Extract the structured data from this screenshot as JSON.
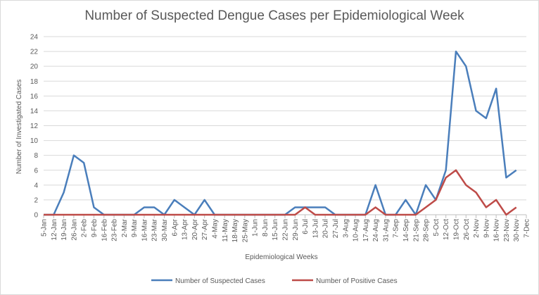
{
  "chart_data": {
    "type": "line",
    "title": "Number of Suspected Dengue Cases per Epidemiological Week",
    "x_label": "Epidemiological Weeks",
    "y_label": "Number  of Investigated Cases",
    "categories": [
      "5-Jan",
      "12-Jan",
      "19-Jan",
      "26-Jan",
      "2-Feb",
      "9-Feb",
      "16-Feb",
      "23-Feb",
      "2-Mar",
      "9-Mar",
      "16-Mar",
      "23-Mar",
      "30-Mar",
      "6-Apr",
      "13-Apr",
      "20-Apr",
      "27-Apr",
      "4-May",
      "11-May",
      "18-May",
      "25-May",
      "1-Jun",
      "8-Jun",
      "15-Jun",
      "22-Jun",
      "29-Jun",
      "6-Jul",
      "13-Jul",
      "20-Jul",
      "27-Jul",
      "3-Aug",
      "10-Aug",
      "17-Aug",
      "24-Aug",
      "31-Aug",
      "7-Sep",
      "14-Sep",
      "21-Sep",
      "28-Sep",
      "5-Oct",
      "12-Oct",
      "19-Oct",
      "26-Oct",
      "2-Nov",
      "9-Nov",
      "16-Nov",
      "23-Nov",
      "30-Nov",
      "7-Dec"
    ],
    "series": [
      {
        "name": "Number of Suspected Cases",
        "color": "#4a7ebb",
        "values": [
          0,
          0,
          3,
          8,
          7,
          1,
          0,
          0,
          0,
          0,
          1,
          1,
          0,
          2,
          1,
          0,
          2,
          0,
          0,
          0,
          0,
          0,
          0,
          0,
          0,
          1,
          1,
          1,
          1,
          0,
          0,
          0,
          0,
          4,
          0,
          0,
          2,
          0,
          4,
          2,
          6,
          22,
          20,
          14,
          13,
          17,
          5,
          6,
          null
        ]
      },
      {
        "name": "Number of Positive Cases",
        "color": "#be4b48",
        "values": [
          0,
          0,
          0,
          0,
          0,
          0,
          0,
          0,
          0,
          0,
          0,
          0,
          0,
          0,
          0,
          0,
          0,
          0,
          0,
          0,
          0,
          0,
          0,
          0,
          0,
          0,
          1,
          0,
          0,
          0,
          0,
          0,
          0,
          1,
          0,
          0,
          0,
          0,
          1,
          2,
          5,
          6,
          4,
          3,
          1,
          2,
          0,
          1,
          null
        ]
      }
    ],
    "ylim": [
      0,
      24
    ],
    "yticks": [
      0,
      2,
      4,
      6,
      8,
      10,
      12,
      14,
      16,
      18,
      20,
      22,
      24
    ],
    "grid": true
  }
}
